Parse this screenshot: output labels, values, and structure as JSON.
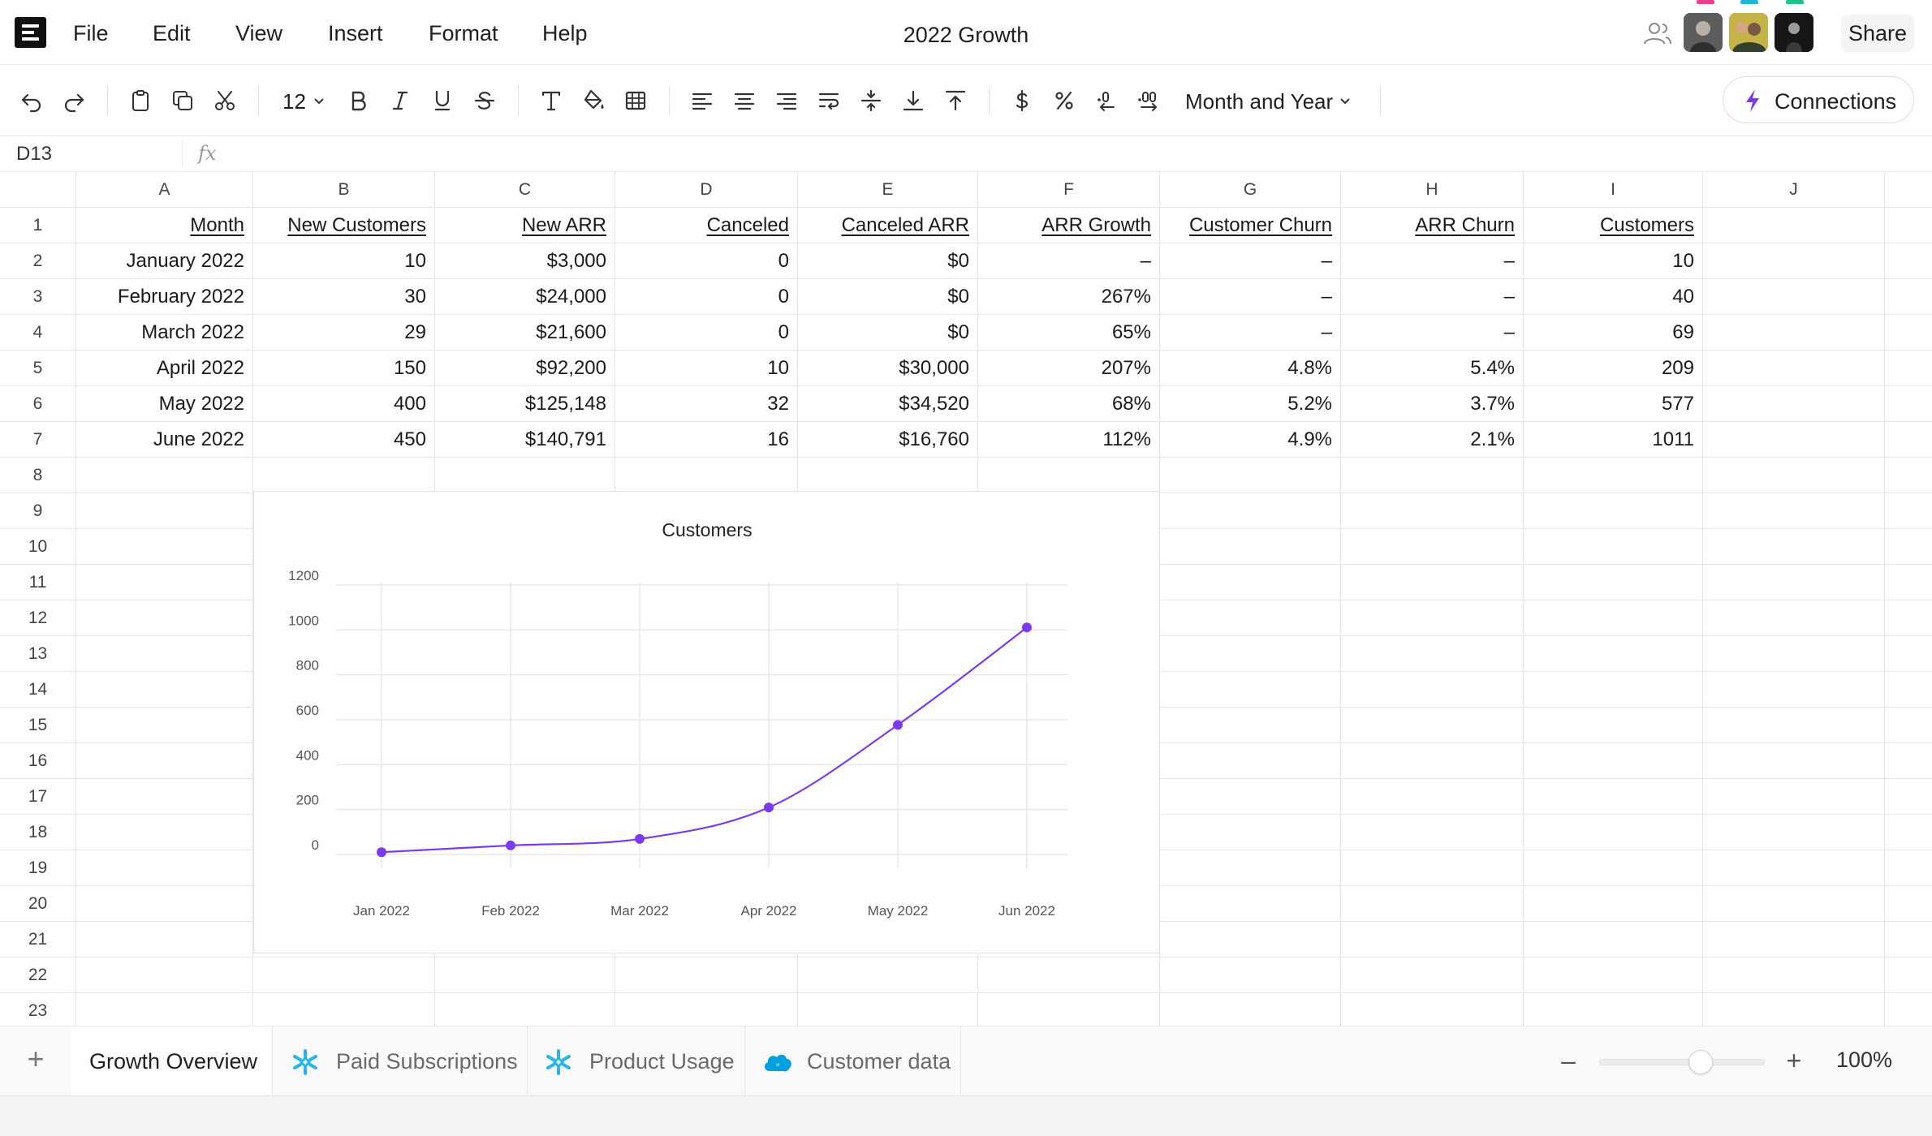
{
  "app": {
    "doc_title": "2022 Growth",
    "menu": [
      "File",
      "Edit",
      "View",
      "Insert",
      "Format",
      "Help"
    ],
    "share_label": "Share",
    "brand_color": "#7c3aed",
    "collaborators": [
      {
        "name": "collaborator-1",
        "marker_color": "#ee3f8d"
      },
      {
        "name": "collaborator-2",
        "marker_color": "#20b6d8"
      },
      {
        "name": "collaborator-3",
        "marker_color": "#1fc28b"
      }
    ]
  },
  "toolbar": {
    "font_size": "12",
    "number_format": "Month and Year",
    "connections_label": "Connections",
    "icons": [
      "undo-icon",
      "redo-icon",
      "paste-icon",
      "copy-icon",
      "cut-icon",
      "bold-icon",
      "italic-icon",
      "underline-icon",
      "strikethrough-icon",
      "text-format-icon",
      "fill-color-icon",
      "borders-icon",
      "align-left-icon",
      "align-center-icon",
      "align-right-icon",
      "wrap-text-icon",
      "vertical-align-middle-icon",
      "vertical-align-bottom-icon",
      "vertical-align-top-icon",
      "currency-icon",
      "percent-icon",
      "decrease-decimal-icon",
      "increase-decimal-icon"
    ]
  },
  "formula_bar": {
    "cell_ref": "D13",
    "fx": "fx"
  },
  "sheet": {
    "columns": [
      "A",
      "B",
      "C",
      "D",
      "E",
      "F",
      "G",
      "H",
      "I",
      "J"
    ],
    "row_numbers": [
      "1",
      "2",
      "3",
      "4",
      "5",
      "6",
      "7",
      "8",
      "9",
      "10",
      "11",
      "12",
      "13",
      "14",
      "15",
      "16",
      "17",
      "18",
      "19",
      "20",
      "21",
      "22",
      "23"
    ],
    "headers": [
      "Month",
      "New Customers",
      "New ARR",
      "Canceled",
      "Canceled ARR",
      "ARR Growth",
      "Customer Churn",
      "ARR Churn",
      "Customers"
    ],
    "rows": [
      [
        "January 2022",
        "10",
        "$3,000",
        "0",
        "$0",
        "–",
        "–",
        "–",
        "10"
      ],
      [
        "February 2022",
        "30",
        "$24,000",
        "0",
        "$0",
        "267%",
        "–",
        "–",
        "40"
      ],
      [
        "March 2022",
        "29",
        "$21,600",
        "0",
        "$0",
        "65%",
        "–",
        "–",
        "69"
      ],
      [
        "April 2022",
        "150",
        "$92,200",
        "10",
        "$30,000",
        "207%",
        "4.8%",
        "5.4%",
        "209"
      ],
      [
        "May 2022",
        "400",
        "$125,148",
        "32",
        "$34,520",
        "68%",
        "5.2%",
        "3.7%",
        "577"
      ],
      [
        "June 2022",
        "450",
        "$140,791",
        "16",
        "$16,760",
        "112%",
        "4.9%",
        "2.1%",
        "1011"
      ]
    ]
  },
  "chart_data": {
    "type": "line",
    "title": "Customers",
    "categories": [
      "Jan 2022",
      "Feb 2022",
      "Mar 2022",
      "Apr 2022",
      "May 2022",
      "Jun 2022"
    ],
    "series": [
      {
        "values": [
          10,
          40,
          69,
          209,
          577,
          1011
        ],
        "color": "#7c3aed"
      }
    ],
    "ylim": [
      0,
      1200
    ],
    "yticks": [
      0,
      200,
      400,
      600,
      800,
      1000,
      1200
    ],
    "grid": true,
    "smooth": true
  },
  "sheets": {
    "tabs": [
      {
        "label": "Growth Overview",
        "icon": "",
        "active": true
      },
      {
        "label": "Paid Subscriptions",
        "icon": "snowflake-icon",
        "active": false
      },
      {
        "label": "Product Usage",
        "icon": "snowflake-icon",
        "active": false
      },
      {
        "label": "Customer data",
        "icon": "salesforce-cloud-icon",
        "active": false
      }
    ],
    "add_label": "+"
  },
  "zoom": {
    "value_label": "100%",
    "minus_label": "–",
    "plus_label": "+",
    "level": 1.0
  }
}
